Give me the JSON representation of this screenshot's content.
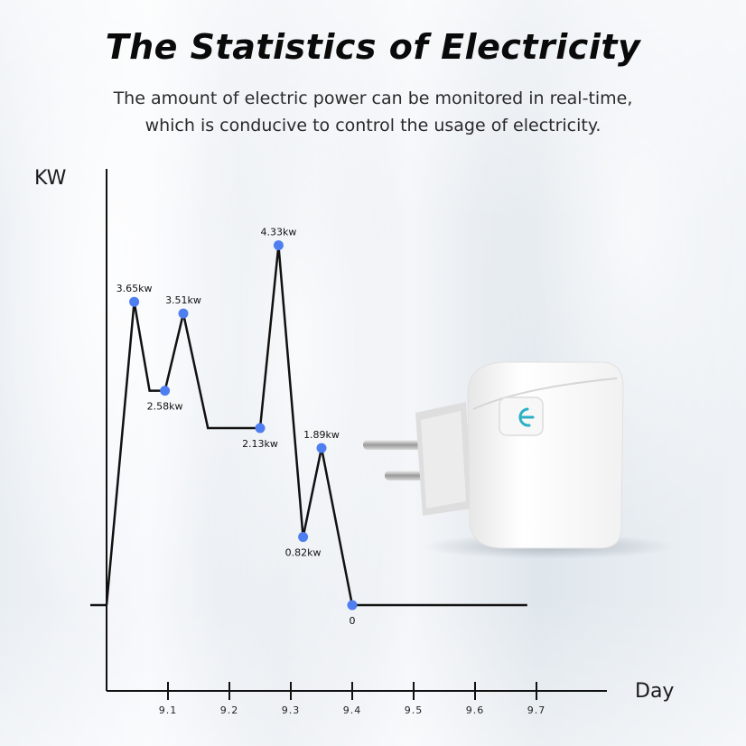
{
  "header": {
    "title": "The Statistics of Electricity",
    "subtitle_line1": "The amount of electric power can be monitored in real-time,",
    "subtitle_line2": "which is conducive to control the usage of electricity."
  },
  "colors": {
    "point": "#4f7ef0",
    "line": "#111111",
    "plug_button": "#2bb0c6"
  },
  "product_image": {
    "icon": "smart-plug-icon",
    "button_icon": "power-icon"
  },
  "chart_data": {
    "type": "line",
    "xlabel": "Day",
    "ylabel": "KW",
    "x_ticks": [
      "9.1",
      "9.2",
      "9.3",
      "9.4",
      "9.5",
      "9.6",
      "9.7"
    ],
    "points": [
      {
        "x": 9.0,
        "y": 0,
        "label": ""
      },
      {
        "x": 9.045,
        "y": 3.65,
        "label": "3.65kw"
      },
      {
        "x": 9.095,
        "y": 2.58,
        "label": "2.58kw"
      },
      {
        "x": 9.125,
        "y": 3.51,
        "label": "3.51kw"
      },
      {
        "x": 9.25,
        "y": 2.13,
        "label": "2.13kw"
      },
      {
        "x": 9.28,
        "y": 4.33,
        "label": "4.33kw"
      },
      {
        "x": 9.32,
        "y": 0.82,
        "label": "0.82kw"
      },
      {
        "x": 9.35,
        "y": 1.89,
        "label": "1.89kw"
      },
      {
        "x": 9.4,
        "y": 0,
        "label": "0"
      }
    ],
    "xlim": [
      9.0,
      9.7
    ],
    "ylim": [
      0,
      4.33
    ]
  }
}
